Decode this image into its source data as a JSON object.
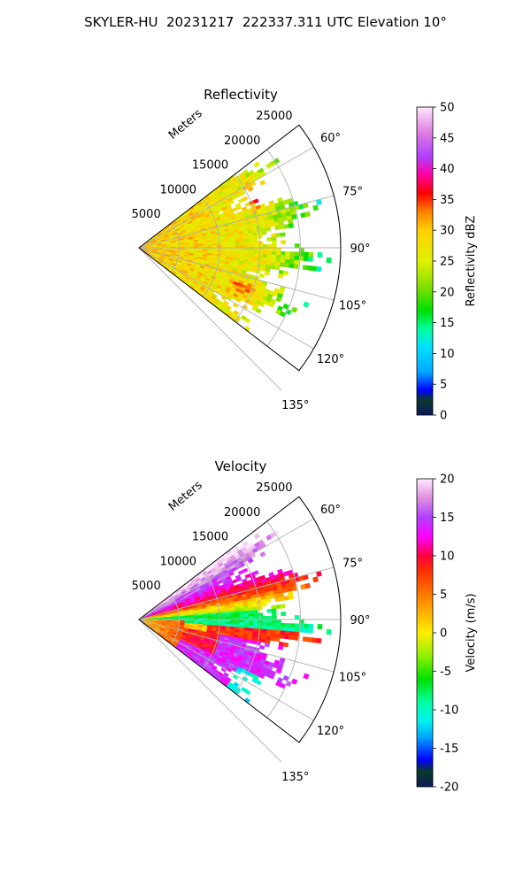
{
  "figure": {
    "title": "SKYLER-HU  20231217  222337.311 UTC Elevation 10°"
  },
  "chart_data": [
    {
      "type": "heatmap",
      "projection": "polar-sector",
      "title": "Reflectivity",
      "range_label": "Meters",
      "range_ticks": [
        5000,
        10000,
        15000,
        20000,
        25000
      ],
      "range_max": 25000,
      "azimuth_ticks": [
        "60°",
        "75°",
        "90°",
        "105°",
        "120°",
        "135°"
      ],
      "azimuth_tick_values": [
        60,
        75,
        90,
        105,
        120,
        135
      ],
      "azimuth_range": [
        52.5,
        127.5
      ],
      "grid": true,
      "colorbar": {
        "label": "Reflectivity dBZ",
        "min": 0,
        "max": 50,
        "ticks": [
          0,
          5,
          10,
          15,
          20,
          25,
          30,
          35,
          40,
          45,
          50
        ],
        "stops": [
          {
            "v": 0,
            "c": "#0b1a5c"
          },
          {
            "v": 2.5,
            "c": "#0a3a2a"
          },
          {
            "v": 4,
            "c": "#0000ff"
          },
          {
            "v": 7,
            "c": "#00a8ff"
          },
          {
            "v": 11,
            "c": "#00e0ff"
          },
          {
            "v": 14,
            "c": "#00ffa0"
          },
          {
            "v": 17,
            "c": "#00e000"
          },
          {
            "v": 21,
            "c": "#88e000"
          },
          {
            "v": 25,
            "c": "#e0f000"
          },
          {
            "v": 30,
            "c": "#ffd000"
          },
          {
            "v": 33,
            "c": "#ff8000"
          },
          {
            "v": 36,
            "c": "#ff0000"
          },
          {
            "v": 39,
            "c": "#ff00a0"
          },
          {
            "v": 42,
            "c": "#b040ff"
          },
          {
            "v": 46,
            "c": "#e080e0"
          },
          {
            "v": 50,
            "c": "#ffe8ff"
          }
        ]
      },
      "field_pattern": "reflectivity",
      "field_value_range": [
        18,
        38
      ]
    },
    {
      "type": "heatmap",
      "projection": "polar-sector",
      "title": "Velocity",
      "range_label": "Meters",
      "range_ticks": [
        5000,
        10000,
        15000,
        20000,
        25000
      ],
      "range_max": 25000,
      "azimuth_ticks": [
        "60°",
        "75°",
        "90°",
        "105°",
        "120°",
        "135°"
      ],
      "azimuth_tick_values": [
        60,
        75,
        90,
        105,
        120,
        135
      ],
      "azimuth_range": [
        52.5,
        127.5
      ],
      "grid": true,
      "colorbar": {
        "label": "Velocity (m/s)",
        "min": -20,
        "max": 20,
        "ticks": [
          -20,
          -15,
          -10,
          -5,
          0,
          5,
          10,
          15,
          20
        ],
        "stops": [
          {
            "v": -20,
            "c": "#0b1a5c"
          },
          {
            "v": -18,
            "c": "#0a3a2a"
          },
          {
            "v": -16.5,
            "c": "#0000ff"
          },
          {
            "v": -13.5,
            "c": "#00a8ff"
          },
          {
            "v": -11.5,
            "c": "#00f0f0"
          },
          {
            "v": -9,
            "c": "#00ffa0"
          },
          {
            "v": -6,
            "c": "#00e000"
          },
          {
            "v": -3,
            "c": "#90f000"
          },
          {
            "v": 0,
            "c": "#ffee00"
          },
          {
            "v": 4,
            "c": "#ff9000"
          },
          {
            "v": 8,
            "c": "#ff3000"
          },
          {
            "v": 10,
            "c": "#ff0040"
          },
          {
            "v": 12.5,
            "c": "#ff00ff"
          },
          {
            "v": 15,
            "c": "#b040ff"
          },
          {
            "v": 17.5,
            "c": "#e090e0"
          },
          {
            "v": 20,
            "c": "#ffe8ff"
          }
        ]
      },
      "field_pattern": "velocity",
      "field_value_range": [
        -14,
        15
      ]
    }
  ]
}
